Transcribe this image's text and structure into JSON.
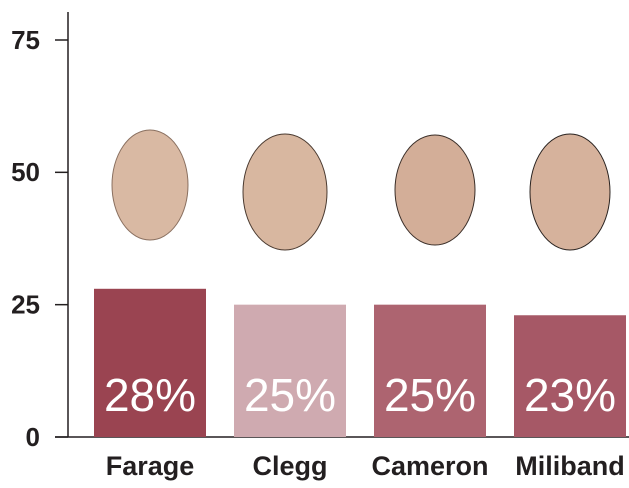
{
  "chart_data": {
    "type": "bar",
    "categories": [
      "Farage",
      "Clegg",
      "Cameron",
      "Miliband"
    ],
    "values": [
      28,
      25,
      25,
      23
    ],
    "value_labels": [
      "28%",
      "25%",
      "25%",
      "23%"
    ],
    "colors": [
      "#9a4451",
      "#cfaab0",
      "#ad6470",
      "#a65866"
    ],
    "ylim": [
      0,
      75
    ],
    "yticks": [
      0,
      25,
      50,
      75
    ]
  }
}
